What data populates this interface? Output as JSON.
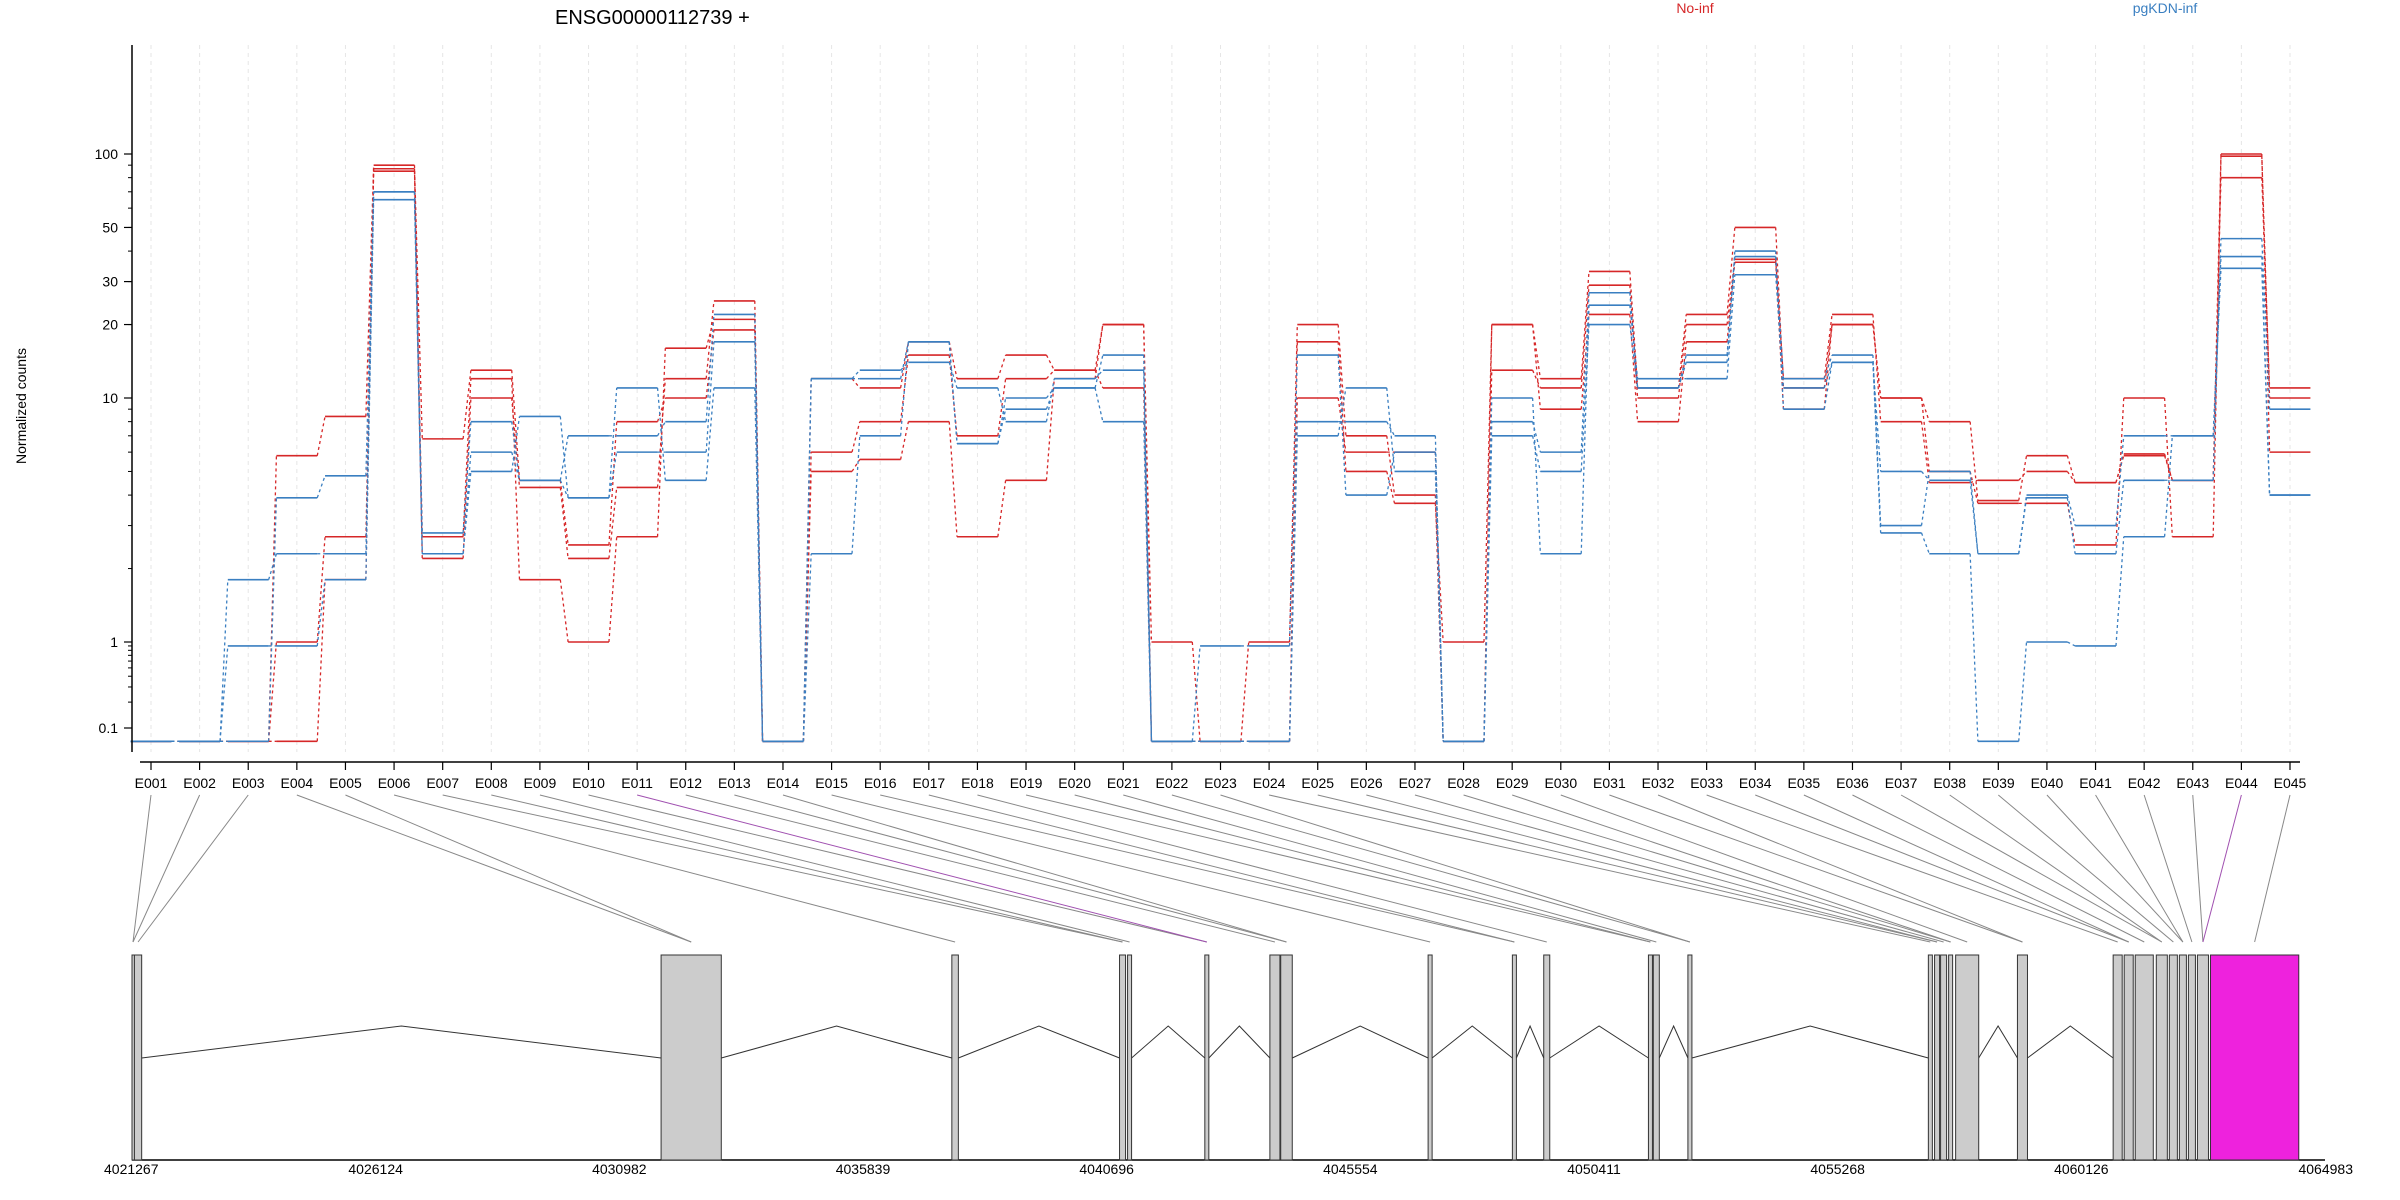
{
  "chart_data": {
    "type": "line",
    "title": "ENSG00000112739 +",
    "ylabel": "Normalized counts",
    "y_scale": "log",
    "y_ticks": [
      0.1,
      1,
      10,
      20,
      30,
      50,
      100
    ],
    "y_tick_labels": [
      "0.1",
      "1",
      "10",
      "20",
      "30",
      "50",
      "100"
    ],
    "categories": [
      "E001",
      "E002",
      "E003",
      "E004",
      "E005",
      "E006",
      "E007",
      "E008",
      "E009",
      "E010",
      "E011",
      "E012",
      "E013",
      "E014",
      "E015",
      "E016",
      "E017",
      "E018",
      "E019",
      "E020",
      "E021",
      "E022",
      "E023",
      "E024",
      "E025",
      "E026",
      "E027",
      "E028",
      "E029",
      "E030",
      "E031",
      "E032",
      "E033",
      "E034",
      "E035",
      "E036",
      "E037",
      "E038",
      "E039",
      "E040",
      "E041",
      "E042",
      "E043",
      "E044",
      "E045"
    ],
    "legend": [
      {
        "label": "No-inf",
        "color": "#d62728"
      },
      {
        "label": "pgKDN-inf",
        "color": "#3a7fc1"
      }
    ],
    "groups": [
      {
        "name": "No-inf",
        "color": "#d62728",
        "series": [
          {
            "values": [
              0.07,
              0.07,
              0.07,
              0.07,
              1.8,
              87,
              2.7,
              12,
              1.8,
              1,
              2.7,
              16,
              21,
              0.07,
              5,
              5.6,
              8,
              2.7,
              4.6,
              12,
              20,
              1,
              0.07,
              0.07,
              17,
              5,
              3.7,
              1,
              20,
              9,
              22,
              8,
              17,
              36,
              9,
              20,
              10,
              5,
              3.7,
              3.7,
              2.5,
              10,
              2.7,
              98,
              10
            ]
          },
          {
            "values": [
              0.07,
              0.07,
              0.07,
              1,
              2.7,
              85,
              2.2,
              10,
              4.3,
              2.2,
              4.3,
              12,
              25,
              0.07,
              6,
              8,
              15,
              7,
              12,
              13,
              11,
              0.07,
              0.07,
              0.07,
              10,
              6,
              6,
              0.07,
              13,
              11,
              29,
              10,
              20,
              37,
              12,
              22,
              8,
              4.5,
              4.6,
              5,
              4.5,
              5.8,
              4.6,
              80,
              11
            ]
          },
          {
            "values": [
              0.07,
              0.07,
              0.07,
              5.8,
              8.4,
              90,
              6.8,
              13,
              4.6,
              2.5,
              8,
              10,
              19,
              0.07,
              12,
              11,
              17,
              12,
              15,
              13,
              20,
              0.07,
              0.07,
              1,
              20,
              7,
              4,
              0.07,
              20,
              12,
              33,
              11,
              22,
              50,
              11,
              20,
              10,
              8,
              3.8,
              5.8,
              4.5,
              5.9,
              4.6,
              100,
              6
            ]
          }
        ]
      },
      {
        "name": "pgKDN-inf",
        "color": "#3a7fc1",
        "series": [
          {
            "values": [
              0.07,
              0.07,
              0.9,
              0.9,
              1.8,
              65,
              2.3,
              5,
              8.4,
              3.9,
              11,
              4.6,
              11,
              0.07,
              2.3,
              7,
              17,
              6.5,
              9,
              11,
              15,
              0.07,
              0.07,
              0.07,
              7,
              11,
              5,
              0.07,
              10,
              2.3,
              24,
              12,
              12,
              32,
              11,
              14,
              2.8,
              2.3,
              0.07,
              1,
              0.9,
              2.7,
              7,
              34,
              4
            ]
          },
          {
            "values": [
              0.07,
              0.07,
              1.8,
              2.3,
              2.3,
              70,
              2.3,
              6,
              4.6,
              3.9,
              6,
              6,
              17,
              0.07,
              12,
              13,
              14,
              11,
              8,
              12,
              13,
              0.07,
              0.9,
              0.9,
              15,
              4,
              6,
              0.07,
              7,
              5,
              20,
              11,
              15,
              38,
              12,
              15,
              3,
              5,
              2.3,
              4,
              3,
              7,
              7,
              38,
              4
            ]
          },
          {
            "values": [
              0.07,
              0.07,
              0.07,
              3.9,
              4.8,
              70,
              2.8,
              8,
              4.6,
              7,
              7,
              8,
              22,
              0.07,
              12,
              12,
              17,
              6.5,
              10,
              11,
              8,
              0.07,
              0.07,
              0.07,
              8,
              8,
              7,
              0.07,
              8,
              6,
              27,
              11,
              14,
              40,
              9,
              14,
              5,
              4.6,
              2.3,
              3.9,
              2.3,
              4.6,
              4.6,
              45,
              9
            ]
          }
        ]
      }
    ],
    "gene_model": {
      "coord_labels": [
        "4021267",
        "4026124",
        "4030982",
        "4035839",
        "4040696",
        "4045554",
        "4050411",
        "4055268",
        "4060126",
        "4064983"
      ],
      "exon_starts": [
        4021267,
        4021315,
        4031814,
        4037610,
        4040953,
        4041113,
        4042653,
        4043950,
        4044166,
        4047104,
        4048784,
        4049409,
        4051496,
        4051593,
        4052283,
        4057076,
        4057200,
        4057320,
        4057480,
        4057620,
        4058852,
        4060760,
        4060980,
        4061200,
        4061620,
        4061880,
        4062080,
        4062260,
        4062440,
        4062700
      ],
      "exon_ends": [
        4021307,
        4021460,
        4033014,
        4037740,
        4041073,
        4041193,
        4042733,
        4044150,
        4044396,
        4047184,
        4048864,
        4049529,
        4051576,
        4051713,
        4052363,
        4057156,
        4057300,
        4057440,
        4057560,
        4058080,
        4059052,
        4060940,
        4061160,
        4061560,
        4061840,
        4062040,
        4062220,
        4062400,
        4062660,
        4064460
      ],
      "highlight_exon": "E044",
      "highlight_color": "#ee22dd"
    }
  }
}
